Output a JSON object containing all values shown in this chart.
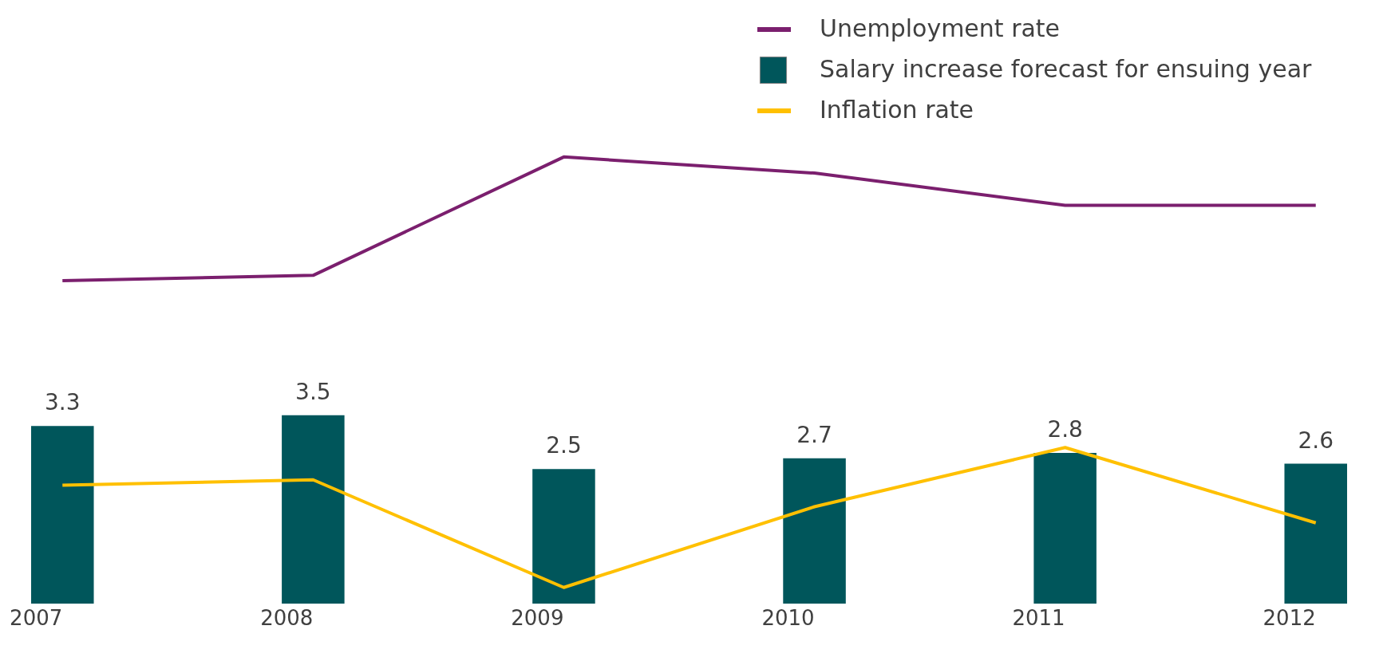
{
  "chart_data": {
    "type": "bar",
    "categories": [
      "2007",
      "2008",
      "2009",
      "2010",
      "2011",
      "2012"
    ],
    "series": [
      {
        "name": "Unemployment rate",
        "type": "line",
        "color": "#7b1f6e",
        "values": [
          6.0,
          6.1,
          8.3,
          8.0,
          7.4,
          7.4
        ]
      },
      {
        "name": "Salary increase forecast for ensuing year",
        "color": "#00565b",
        "values": [
          3.3,
          3.5,
          2.5,
          2.7,
          2.8,
          2.6
        ],
        "data_labels": true
      },
      {
        "name": "Inflation rate",
        "type": "line",
        "color": "#ffc000",
        "values": [
          2.2,
          2.3,
          0.3,
          1.8,
          2.9,
          1.5
        ]
      }
    ],
    "legend": "top right",
    "grid": false,
    "tick_labels": "x",
    "marker": "none",
    "line_style": "solid"
  }
}
